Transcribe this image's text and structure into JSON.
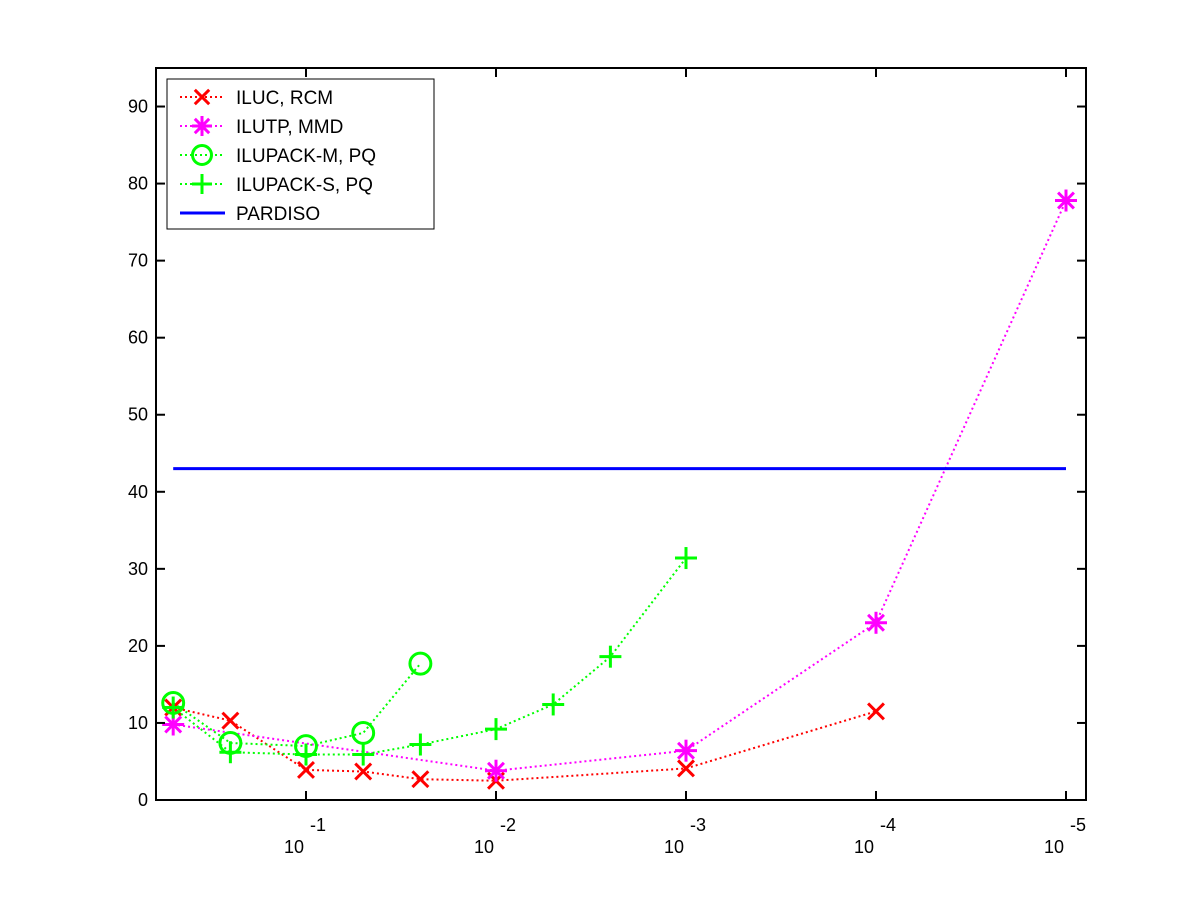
{
  "chart_data": {
    "type": "line",
    "x_scale": "log",
    "x_reversed": true,
    "xlim": [
      0.5,
      1e-05
    ],
    "ylim": [
      0,
      95
    ],
    "grid": false,
    "legend_position": "top-left",
    "xticks": [
      {
        "value": 0.1,
        "base": "10",
        "exponent": "-1"
      },
      {
        "value": 0.01,
        "base": "10",
        "exponent": "-2"
      },
      {
        "value": 0.001,
        "base": "10",
        "exponent": "-3"
      },
      {
        "value": 0.0001,
        "base": "10",
        "exponent": "-4"
      },
      {
        "value": 1e-05,
        "base": "10",
        "exponent": "-5"
      }
    ],
    "yticks": [
      0,
      10,
      20,
      30,
      40,
      50,
      60,
      70,
      80,
      90
    ],
    "series": [
      {
        "name": "ILUC, RCM",
        "color": "#ff0000",
        "marker": "x",
        "line": "dotted",
        "x": [
          0.5,
          0.25,
          0.1,
          0.05,
          0.025,
          0.01,
          0.001,
          0.0001
        ],
        "y": [
          12.0,
          10.3,
          3.9,
          3.7,
          2.7,
          2.5,
          4.1,
          11.5
        ]
      },
      {
        "name": "ILUTP, MMD",
        "color": "#ff00ff",
        "marker": "asterisk",
        "line": "dotted",
        "x": [
          0.5,
          0.01,
          0.001,
          0.0001,
          1e-05
        ],
        "y": [
          9.8,
          3.8,
          6.4,
          23.0,
          77.8
        ]
      },
      {
        "name": "ILUPACK-M, PQ",
        "color": "#00ff00",
        "marker": "circle",
        "line": "dotted",
        "x": [
          0.5,
          0.25,
          0.1,
          0.05,
          0.025
        ],
        "y": [
          12.6,
          7.4,
          7.0,
          8.7,
          17.7
        ]
      },
      {
        "name": "ILUPACK-S, PQ",
        "color": "#00ff00",
        "marker": "plus",
        "line": "dotted",
        "x": [
          0.5,
          0.25,
          0.1,
          0.05,
          0.025,
          0.01,
          0.005,
          0.0025,
          0.001
        ],
        "y": [
          12.0,
          6.2,
          5.9,
          5.9,
          7.2,
          9.2,
          12.4,
          18.6,
          31.4
        ]
      },
      {
        "name": "PARDISO",
        "color": "#0000ff",
        "marker": "none",
        "line": "solid",
        "x": [
          0.5,
          1e-05
        ],
        "y": [
          43.0,
          43.0
        ]
      }
    ]
  }
}
